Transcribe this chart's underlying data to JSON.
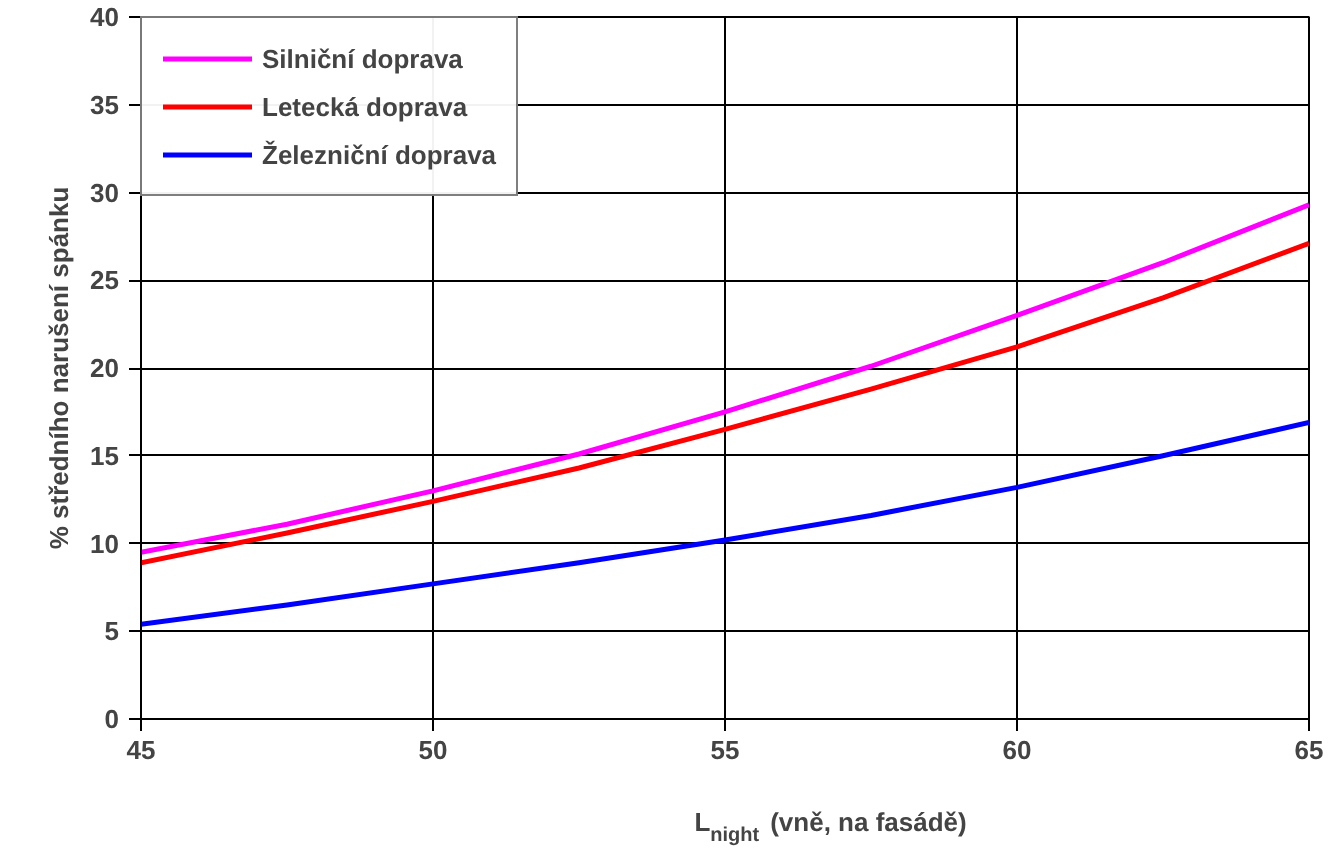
{
  "chart_data": {
    "type": "line",
    "xlabel": "L$_{night}$ (vně, na fasádě)",
    "ylabel": "% středního narušení spánku",
    "x": [
      45,
      47.5,
      50,
      52.5,
      55,
      57.5,
      60,
      62.5,
      65
    ],
    "series": [
      {
        "name": "Silniční doprava",
        "color": "#ff00ff",
        "values": [
          9.5,
          11.1,
          13.0,
          15.1,
          17.5,
          20.1,
          23.0,
          26.0,
          29.3
        ]
      },
      {
        "name": "Letecká doprava",
        "color": "#ff0000",
        "values": [
          8.9,
          10.6,
          12.4,
          14.3,
          16.5,
          18.8,
          21.2,
          24.0,
          27.1
        ]
      },
      {
        "name": "Železniční doprava",
        "color": "#0000ff",
        "values": [
          5.4,
          6.5,
          7.7,
          8.9,
          10.2,
          11.6,
          13.2,
          15.0,
          16.9
        ]
      }
    ],
    "xlim": [
      45,
      65
    ],
    "xticks": [
      45,
      50,
      55,
      60,
      65
    ],
    "ylim": [
      0,
      40
    ],
    "yticks": [
      0,
      5,
      10,
      15,
      20,
      25,
      30,
      35,
      40
    ],
    "grid": true,
    "legend": "top left",
    "marker": "none",
    "line_style": "solid"
  }
}
